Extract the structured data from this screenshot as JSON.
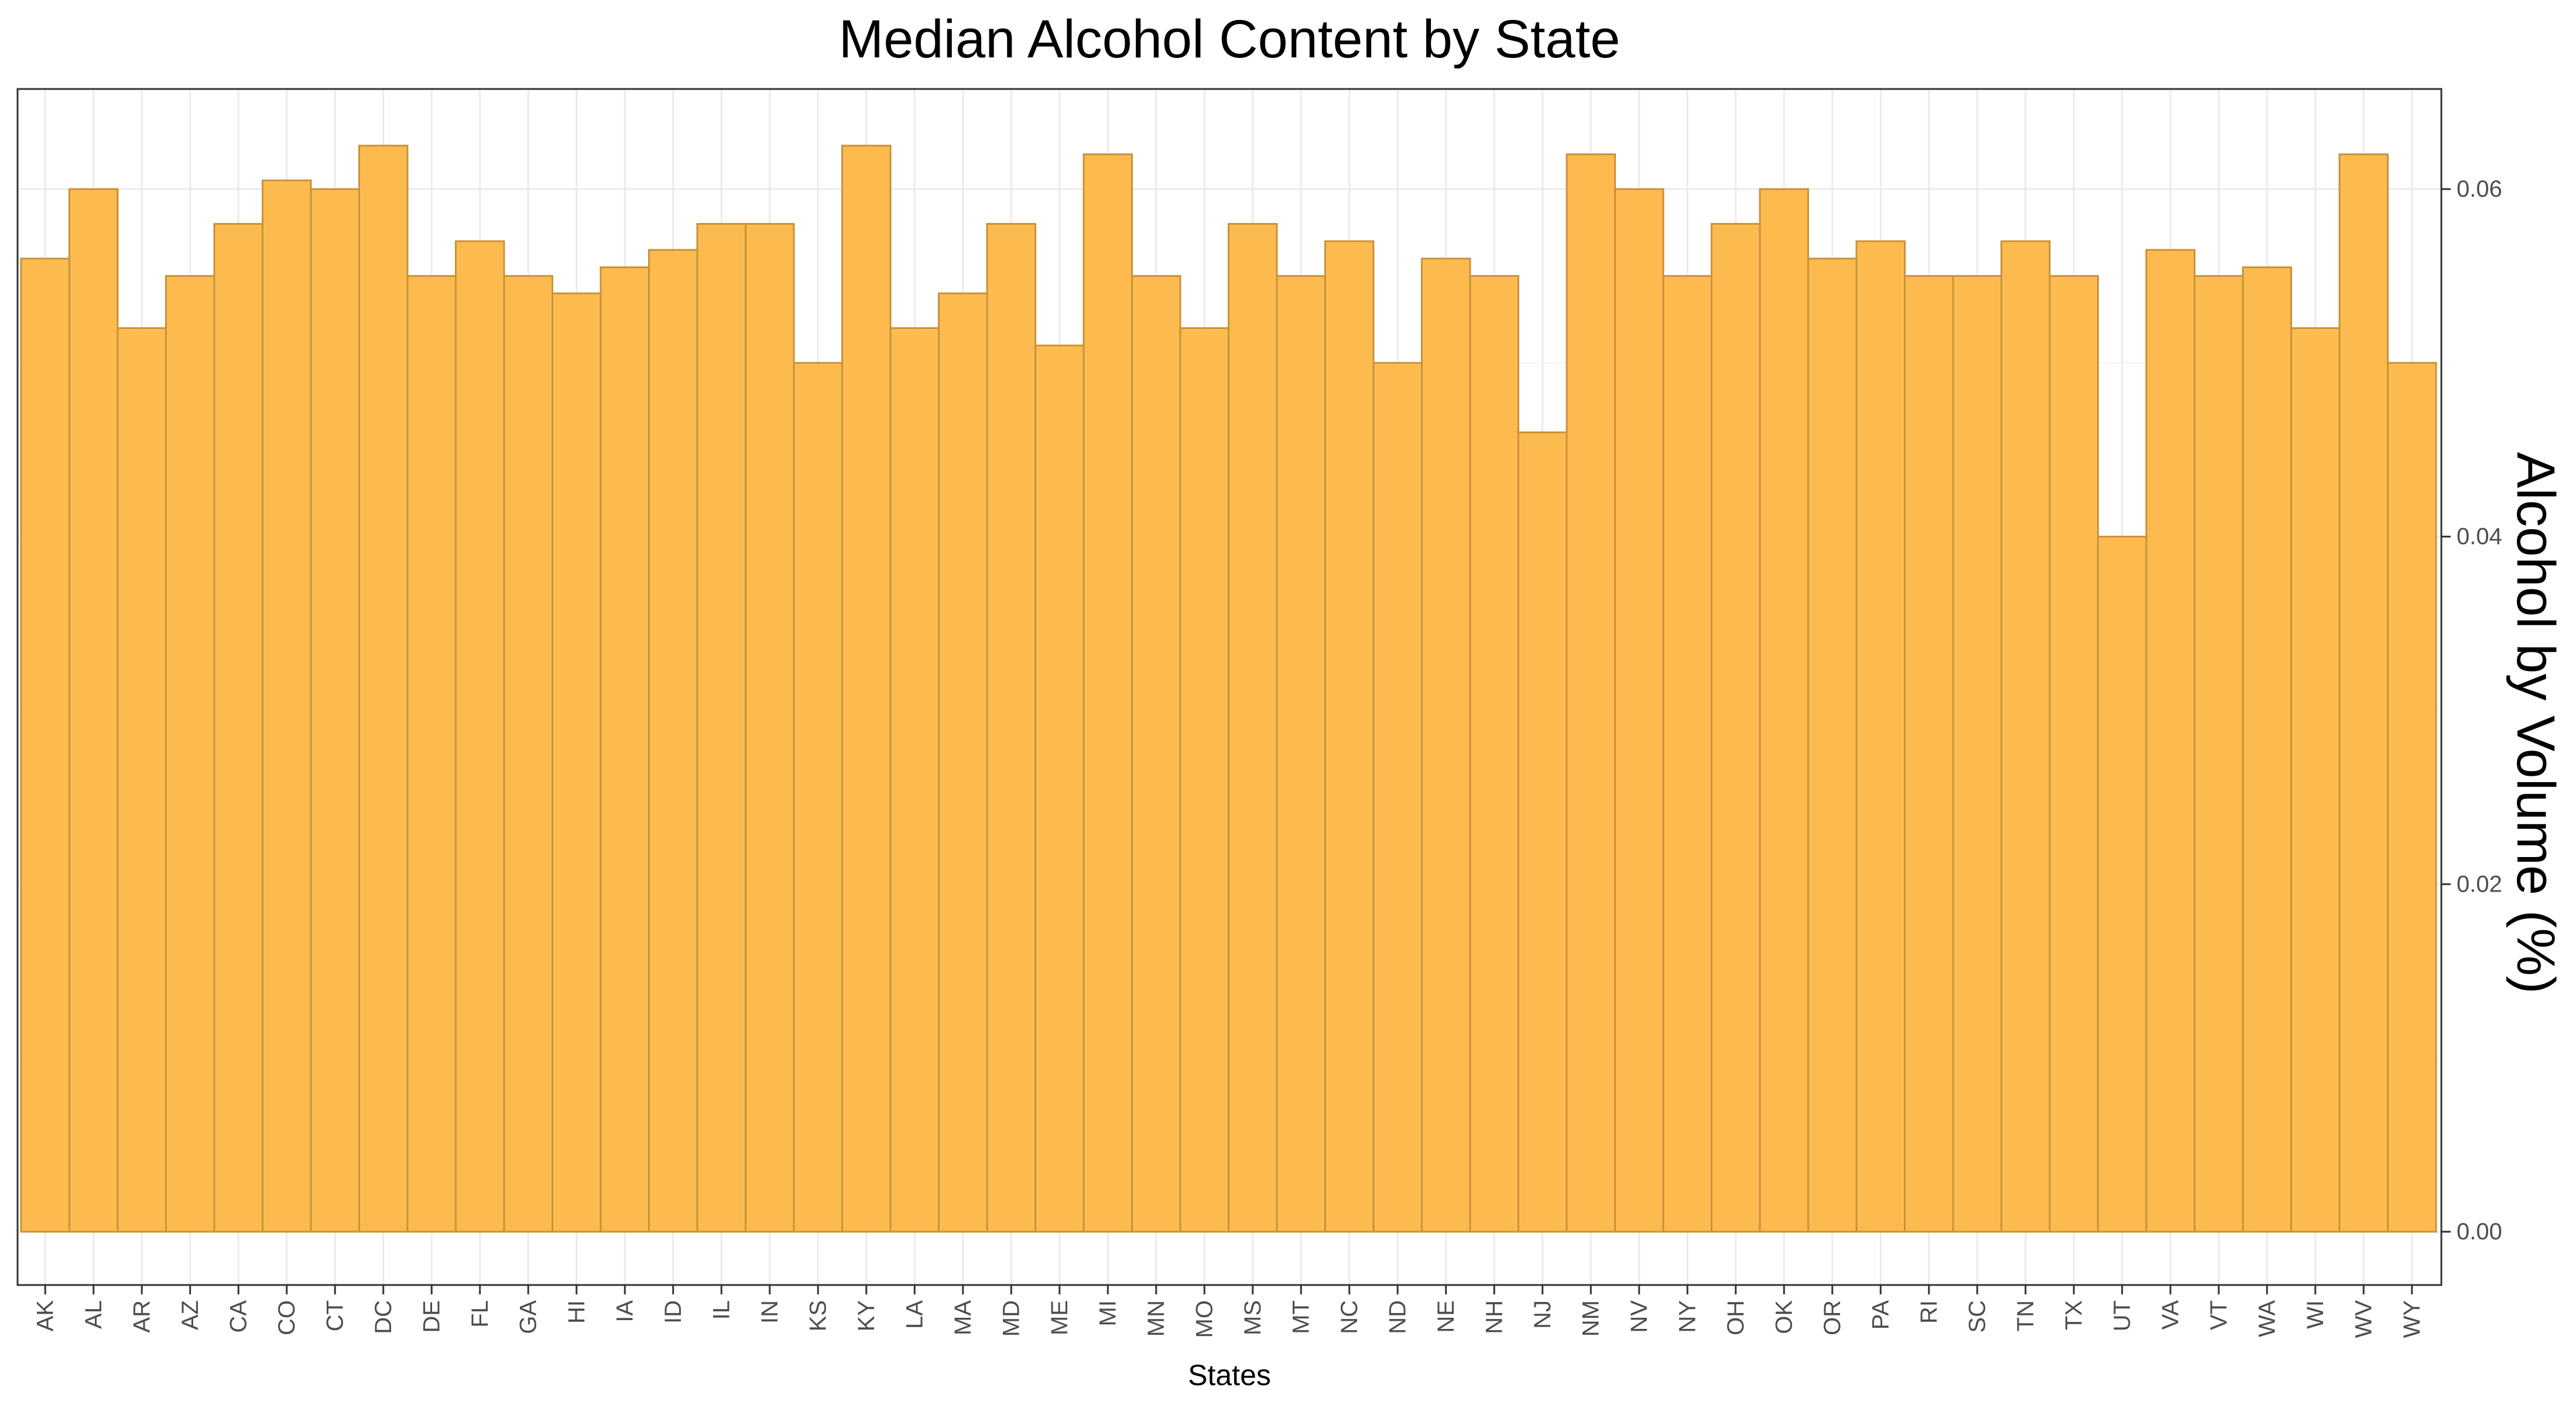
{
  "chart_data": {
    "type": "bar",
    "title": "Median Alcohol Content by State",
    "xlabel": "States",
    "ylabel": "Alcohol by Volume (%)",
    "ylim": [
      0,
      0.065
    ],
    "yticks": [
      "0.00",
      "0.02",
      "0.04",
      "0.06"
    ],
    "ytick_values": [
      0,
      0.02,
      0.04,
      0.06
    ],
    "y_axis_position": "right",
    "grid": true,
    "legend": "none",
    "bar_color": "#FDBB4F",
    "bar_edge_color": "#C8923A",
    "categories": [
      "AK",
      "AL",
      "AR",
      "AZ",
      "CA",
      "CO",
      "CT",
      "DC",
      "DE",
      "FL",
      "GA",
      "HI",
      "IA",
      "ID",
      "IL",
      "IN",
      "KS",
      "KY",
      "LA",
      "MA",
      "MD",
      "ME",
      "MI",
      "MN",
      "MO",
      "MS",
      "MT",
      "NC",
      "ND",
      "NE",
      "NH",
      "NJ",
      "NM",
      "NV",
      "NY",
      "OH",
      "OK",
      "OR",
      "PA",
      "RI",
      "SC",
      "TN",
      "TX",
      "UT",
      "VA",
      "VT",
      "WA",
      "WI",
      "WV",
      "WY"
    ],
    "values": [
      0.056,
      0.06,
      0.052,
      0.055,
      0.058,
      0.0605,
      0.06,
      0.0625,
      0.055,
      0.057,
      0.055,
      0.054,
      0.0555,
      0.0565,
      0.058,
      0.058,
      0.05,
      0.0625,
      0.052,
      0.054,
      0.058,
      0.051,
      0.062,
      0.055,
      0.052,
      0.058,
      0.055,
      0.057,
      0.05,
      0.056,
      0.055,
      0.046,
      0.062,
      0.06,
      0.055,
      0.058,
      0.06,
      0.056,
      0.057,
      0.055,
      0.055,
      0.057,
      0.055,
      0.04,
      0.0565,
      0.055,
      0.0555,
      0.052,
      0.062,
      0.05
    ]
  }
}
